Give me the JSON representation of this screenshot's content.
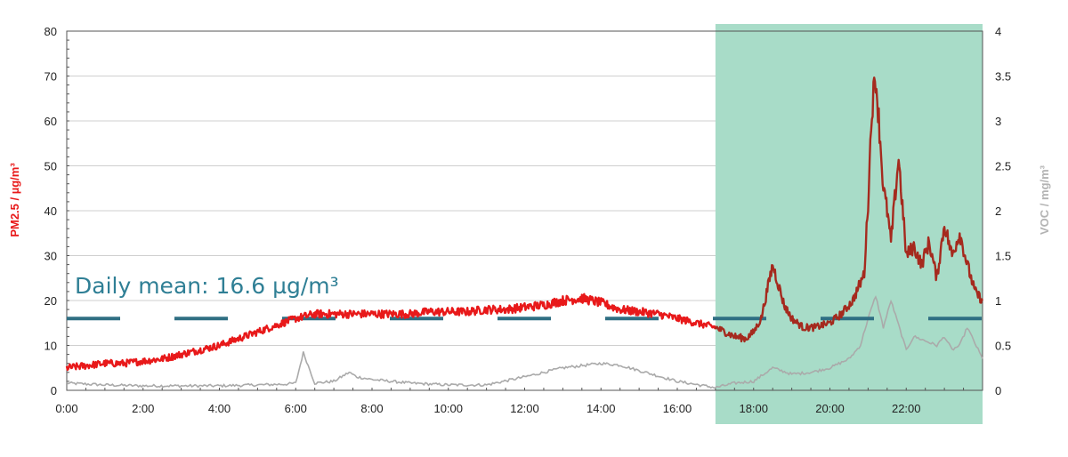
{
  "chart_data": {
    "type": "line",
    "title": "",
    "x_unit": "time of day (hours)",
    "xlim": [
      0,
      24
    ],
    "x_ticks": [
      0,
      2,
      4,
      6,
      8,
      10,
      12,
      14,
      16,
      18,
      20,
      22
    ],
    "x_tick_labels": [
      "0:00",
      "2:00",
      "4:00",
      "6:00",
      "8:00",
      "10:00",
      "12:00",
      "14:00",
      "16:00",
      "18:00",
      "20:00",
      "22:00"
    ],
    "y_left": {
      "label": "PM2.5 / µg/m³",
      "color": "#e8191a",
      "lim": [
        0,
        80
      ],
      "ticks": [
        0,
        10,
        20,
        30,
        40,
        50,
        60,
        70,
        80
      ],
      "tick_labels": [
        "0",
        "10",
        "20",
        "30",
        "40",
        "50",
        "60",
        "70",
        "80"
      ]
    },
    "y_right": {
      "label": "VOC / mg/m³",
      "color": "#b3b3b3",
      "lim": [
        0,
        4
      ],
      "ticks": [
        0,
        0.5,
        1,
        1.5,
        2,
        2.5,
        3,
        3.5,
        4
      ],
      "tick_labels": [
        "0",
        "0.5",
        "1",
        "1.5",
        "2",
        "2.5",
        "3",
        "3.5",
        "4"
      ]
    },
    "grid": true,
    "shaded_region": {
      "x_start": 17,
      "x_end": 24,
      "color": "#a8dcc8"
    },
    "series": [
      {
        "axis": "left",
        "color": "#e8191a",
        "shaded_color": "#a52a1e",
        "x": [
          0,
          0.5,
          1,
          1.5,
          2,
          2.5,
          3,
          3.5,
          4,
          4.5,
          5,
          5.5,
          6,
          6.5,
          7,
          7.5,
          8,
          8.5,
          9,
          9.5,
          10,
          10.5,
          11,
          11.5,
          12,
          12.5,
          13,
          13.5,
          14,
          14.5,
          15,
          15.5,
          16,
          16.5,
          17,
          17.5,
          17.8,
          18,
          18.2,
          18.5,
          18.8,
          19,
          19.3,
          19.6,
          20,
          20.3,
          20.6,
          20.9,
          21,
          21.1,
          21.2,
          21.3,
          21.4,
          21.5,
          21.6,
          21.8,
          22,
          22.2,
          22.4,
          22.6,
          22.8,
          23,
          23.2,
          23.4,
          23.6,
          23.8,
          24
        ],
        "values": [
          5,
          5.5,
          6,
          6,
          6.5,
          7,
          8,
          9,
          10,
          11.5,
          13,
          14.5,
          16,
          17,
          17,
          17,
          17,
          17,
          17,
          17.5,
          17.5,
          17.5,
          18,
          18,
          18.5,
          19,
          20,
          20.5,
          19.5,
          18,
          17.5,
          17,
          16,
          15,
          14,
          12,
          11.5,
          13,
          16,
          28,
          19,
          16,
          14,
          14,
          15,
          17,
          20,
          26,
          42,
          63,
          70,
          58,
          45,
          40,
          33,
          52,
          30,
          32,
          28,
          33,
          25,
          37,
          30,
          35,
          28,
          22,
          20
        ]
      },
      {
        "axis": "right",
        "color": "#aaaaaa",
        "x": [
          0,
          1,
          2,
          3,
          4,
          5,
          5.8,
          6,
          6.2,
          6.5,
          7,
          7.4,
          7.6,
          8,
          8.5,
          9,
          10,
          11,
          12,
          13,
          14,
          14.5,
          15,
          16,
          17,
          17.5,
          18,
          18.5,
          19,
          19.5,
          20,
          20.5,
          20.8,
          21,
          21.2,
          21.4,
          21.6,
          22,
          22.2,
          22.5,
          22.8,
          23,
          23.2,
          23.4,
          23.6,
          24
        ],
        "values": [
          0.08,
          0.06,
          0.05,
          0.05,
          0.05,
          0.06,
          0.07,
          0.08,
          0.42,
          0.08,
          0.1,
          0.2,
          0.15,
          0.12,
          0.1,
          0.08,
          0.06,
          0.06,
          0.15,
          0.25,
          0.3,
          0.28,
          0.22,
          0.1,
          0.03,
          0.08,
          0.1,
          0.25,
          0.18,
          0.2,
          0.25,
          0.35,
          0.5,
          0.8,
          1.05,
          0.7,
          1,
          0.45,
          0.6,
          0.55,
          0.5,
          0.6,
          0.45,
          0.5,
          0.7,
          0.35
        ]
      }
    ],
    "reference_line": {
      "axis": "left",
      "value": 16,
      "color": "#2f6f83",
      "style": "dashed"
    },
    "annotations": [
      {
        "text": "Daily mean: 16.6 µg/m³",
        "color": "#2f7f95"
      }
    ]
  }
}
